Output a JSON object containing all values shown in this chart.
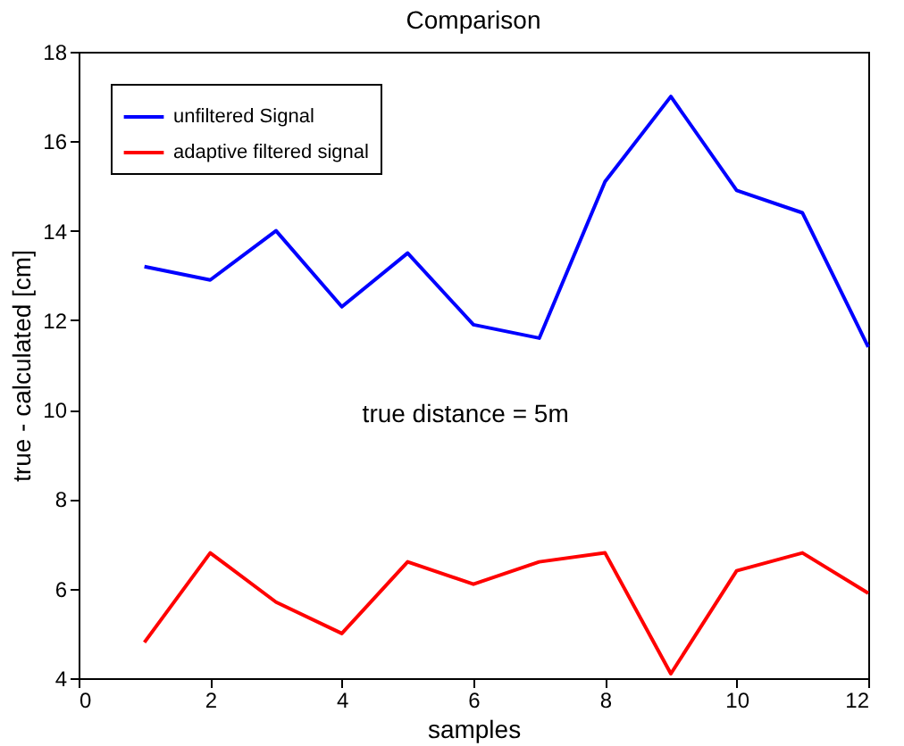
{
  "chart_data": {
    "type": "line",
    "title": "Comparison",
    "xlabel": "samples",
    "ylabel": "true - calculated [cm]",
    "x": [
      1,
      2,
      3,
      4,
      5,
      6,
      7,
      8,
      9,
      10,
      11,
      12
    ],
    "series": [
      {
        "name": "unfiltered Signal",
        "color": "#0000ff",
        "values": [
          13.2,
          12.9,
          14.0,
          12.3,
          13.5,
          11.9,
          11.6,
          15.1,
          17.0,
          14.9,
          14.4,
          11.4
        ]
      },
      {
        "name": "adaptive filtered signal",
        "color": "#ff0000",
        "values": [
          4.8,
          6.8,
          5.7,
          5.0,
          6.6,
          6.1,
          6.6,
          6.8,
          4.1,
          6.4,
          6.8,
          5.9
        ]
      }
    ],
    "xlim": [
      0,
      12
    ],
    "xticks": [
      0,
      2,
      4,
      6,
      8,
      10,
      12
    ],
    "ylim": [
      4,
      18
    ],
    "yticks": [
      4,
      6,
      8,
      10,
      12,
      14,
      16,
      18
    ],
    "annotations": [
      "true distance = 5m"
    ],
    "legend": "top left",
    "grid": false,
    "marker": "none",
    "line_style": "solid"
  }
}
